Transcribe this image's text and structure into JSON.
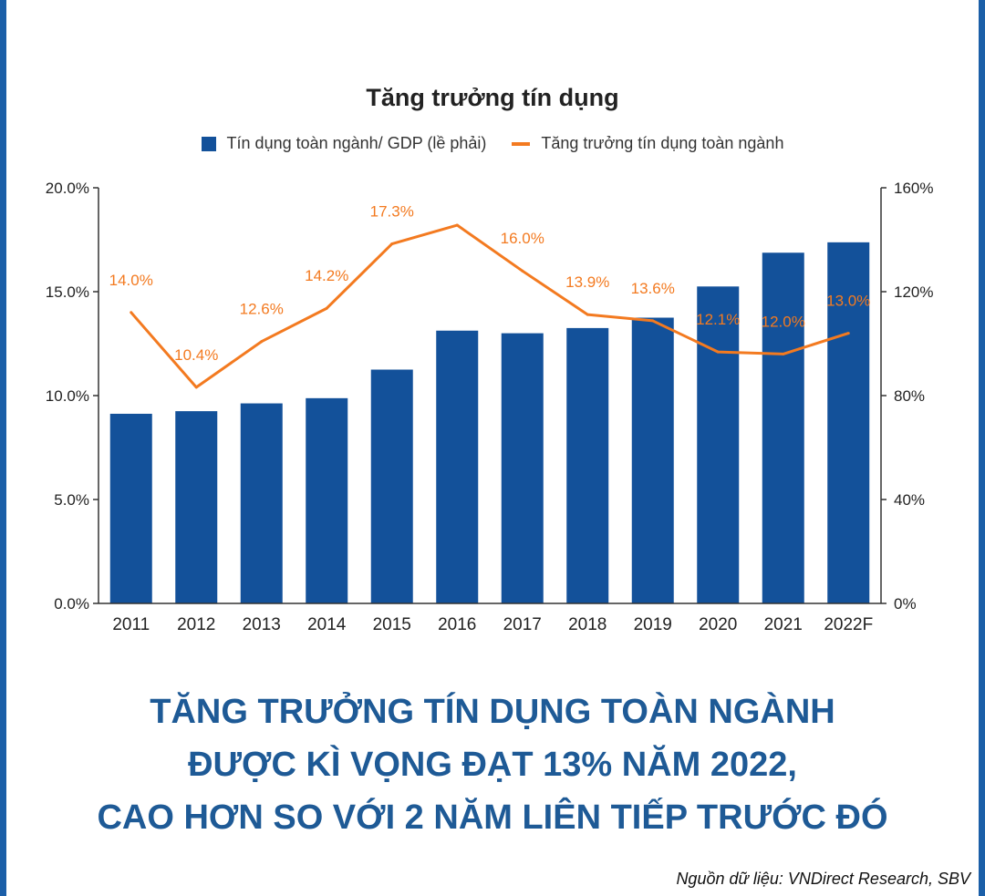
{
  "colors": {
    "frame": "#1b5fa8",
    "bar": "#13519a",
    "line": "#f37a20",
    "headline": "#1e5a96",
    "grid_axis": "#333333"
  },
  "chart_data": {
    "type": "bar",
    "title": "Tăng trưởng tín dụng",
    "categories": [
      "2011",
      "2012",
      "2013",
      "2014",
      "2015",
      "2016",
      "2017",
      "2018",
      "2019",
      "2020",
      "2021",
      "2022F"
    ],
    "series": [
      {
        "name": "Tín dụng toàn ngành/ GDP (lề phải)",
        "type": "bar",
        "axis": "right",
        "values": [
          73,
          74,
          77,
          79,
          90,
          105,
          104,
          106,
          110,
          122,
          135,
          139
        ]
      },
      {
        "name": "Tăng trưởng tín dụng toàn ngành",
        "type": "line",
        "axis": "left",
        "values": [
          14.0,
          10.4,
          12.6,
          14.2,
          17.3,
          18.2,
          16.0,
          13.9,
          13.6,
          12.1,
          12.0,
          13.0
        ],
        "data_labels": [
          "14.0%",
          "10.4%",
          "12.6%",
          "14.2%",
          "17.3%",
          "",
          "16.0%",
          "13.9%",
          "13.6%",
          "12.1%",
          "12.0%",
          "13.0%"
        ]
      }
    ],
    "y_left": {
      "lim": [
        0,
        20
      ],
      "tick_labels": [
        "0.0%",
        "5.0%",
        "10.0%",
        "15.0%",
        "20.0%"
      ]
    },
    "y_right": {
      "lim": [
        0,
        160
      ],
      "tick_labels": [
        "0%",
        "40%",
        "80%",
        "120%",
        "160%"
      ]
    },
    "grid": false,
    "legend_position": "top-center"
  },
  "headline": {
    "line1": "TĂNG TRƯỞNG TÍN DỤNG TOÀN NGÀNH",
    "line2": "ĐƯỢC KÌ VỌNG ĐẠT 13% NĂM 2022,",
    "line3": "CAO HƠN SO VỚI 2 NĂM LIÊN TIẾP TRƯỚC ĐÓ"
  },
  "source": "Nguồn dữ liệu: VNDirect Research, SBV"
}
